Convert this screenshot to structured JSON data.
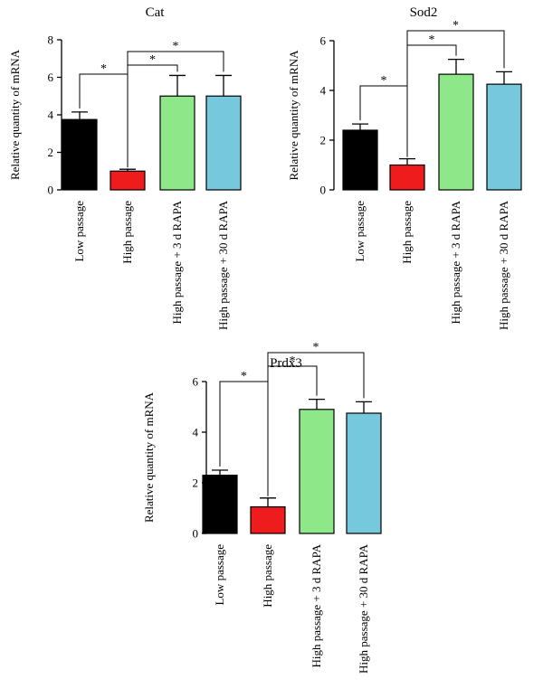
{
  "colors": {
    "low_passage": "#000000",
    "high_passage": "#ee1c1c",
    "rapa_3d": "#8ee88a",
    "rapa_30d": "#76c9dd"
  },
  "chart_data": [
    {
      "type": "bar",
      "title": "Cat",
      "ylabel": "Relative quantity of mRNA",
      "xlabel": "",
      "ylim": [
        0,
        8
      ],
      "yticks": [
        "0",
        "2",
        "4",
        "6",
        "8"
      ],
      "categories": [
        "Low passage",
        "High passage",
        "High passage + 3 d RAPA",
        "High passage + 30 d RAPA"
      ],
      "values": [
        3.75,
        1.0,
        5.0,
        5.0
      ],
      "errors": [
        0.4,
        0.1,
        1.1,
        1.1
      ],
      "bar_colors": [
        "#000000",
        "#ee1c1c",
        "#8ee88a",
        "#76c9dd"
      ],
      "significance": [
        {
          "from": 0,
          "to": 1,
          "label": "*"
        },
        {
          "from": 1,
          "to": 2,
          "label": "*"
        },
        {
          "from": 1,
          "to": 3,
          "label": "*"
        }
      ],
      "grid": false,
      "legend": "none"
    },
    {
      "type": "bar",
      "title": "Sod2",
      "ylabel": "Relative quantity of mRNA",
      "xlabel": "",
      "ylim": [
        0,
        6
      ],
      "yticks": [
        "0",
        "2",
        "4",
        "6"
      ],
      "categories": [
        "Low passage",
        "High passage",
        "High passage + 3 d RAPA",
        "High passage + 30 d RAPA"
      ],
      "values": [
        2.4,
        1.0,
        4.65,
        4.25
      ],
      "errors": [
        0.25,
        0.25,
        0.6,
        0.5
      ],
      "bar_colors": [
        "#000000",
        "#ee1c1c",
        "#8ee88a",
        "#76c9dd"
      ],
      "significance": [
        {
          "from": 0,
          "to": 1,
          "label": "*"
        },
        {
          "from": 1,
          "to": 2,
          "label": "*"
        },
        {
          "from": 1,
          "to": 3,
          "label": "*"
        }
      ],
      "grid": false,
      "legend": "none"
    },
    {
      "type": "bar",
      "title": "Prdx3",
      "ylabel": "Relative quantity of mRNA",
      "xlabel": "",
      "ylim": [
        0,
        6
      ],
      "yticks": [
        "0",
        "2",
        "4",
        "6"
      ],
      "categories": [
        "Low passage",
        "High passage",
        "High passage + 3 d RAPA",
        "High passage + 30 d RAPA"
      ],
      "values": [
        2.3,
        1.05,
        4.9,
        4.75
      ],
      "errors": [
        0.2,
        0.35,
        0.4,
        0.45
      ],
      "bar_colors": [
        "#000000",
        "#ee1c1c",
        "#8ee88a",
        "#76c9dd"
      ],
      "significance": [
        {
          "from": 0,
          "to": 1,
          "label": "*"
        },
        {
          "from": 1,
          "to": 2,
          "label": "*"
        },
        {
          "from": 1,
          "to": 3,
          "label": "*"
        }
      ],
      "grid": false,
      "legend": "none"
    }
  ]
}
